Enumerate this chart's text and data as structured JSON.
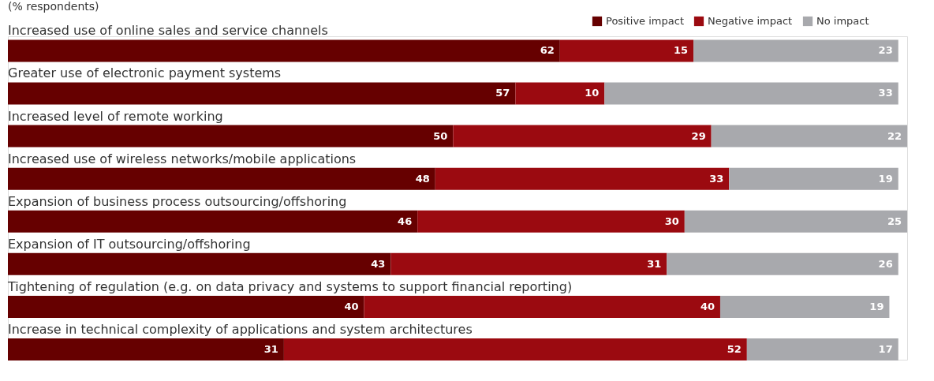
{
  "chart_data": {
    "type": "bar",
    "orientation": "horizontal",
    "stacked": true,
    "title": "(% respondents)",
    "categories": [
      "Increased use of online sales and service channels",
      "Greater use of electronic payment systems",
      "Increased level of remote working",
      "Increased use of wireless networks/mobile applications",
      "Expansion of business process outsourcing/offshoring",
      "Expansion of IT outsourcing/offshoring",
      "Tightening of regulation (e.g. on data privacy and systems to support financial reporting)",
      "Increase in technical complexity of applications and system architectures"
    ],
    "series": [
      {
        "name": "Positive impact",
        "color": "#660000",
        "values": [
          62,
          57,
          50,
          48,
          46,
          43,
          40,
          31
        ]
      },
      {
        "name": "Negative impact",
        "color": "#9b0a10",
        "values": [
          15,
          10,
          29,
          33,
          30,
          31,
          40,
          52
        ]
      },
      {
        "name": "No impact",
        "color": "#a8a9ad",
        "values": [
          23,
          33,
          22,
          19,
          25,
          26,
          19,
          17
        ]
      }
    ],
    "xlim": [
      0,
      101
    ],
    "data_labels": true,
    "legend": "top right"
  }
}
